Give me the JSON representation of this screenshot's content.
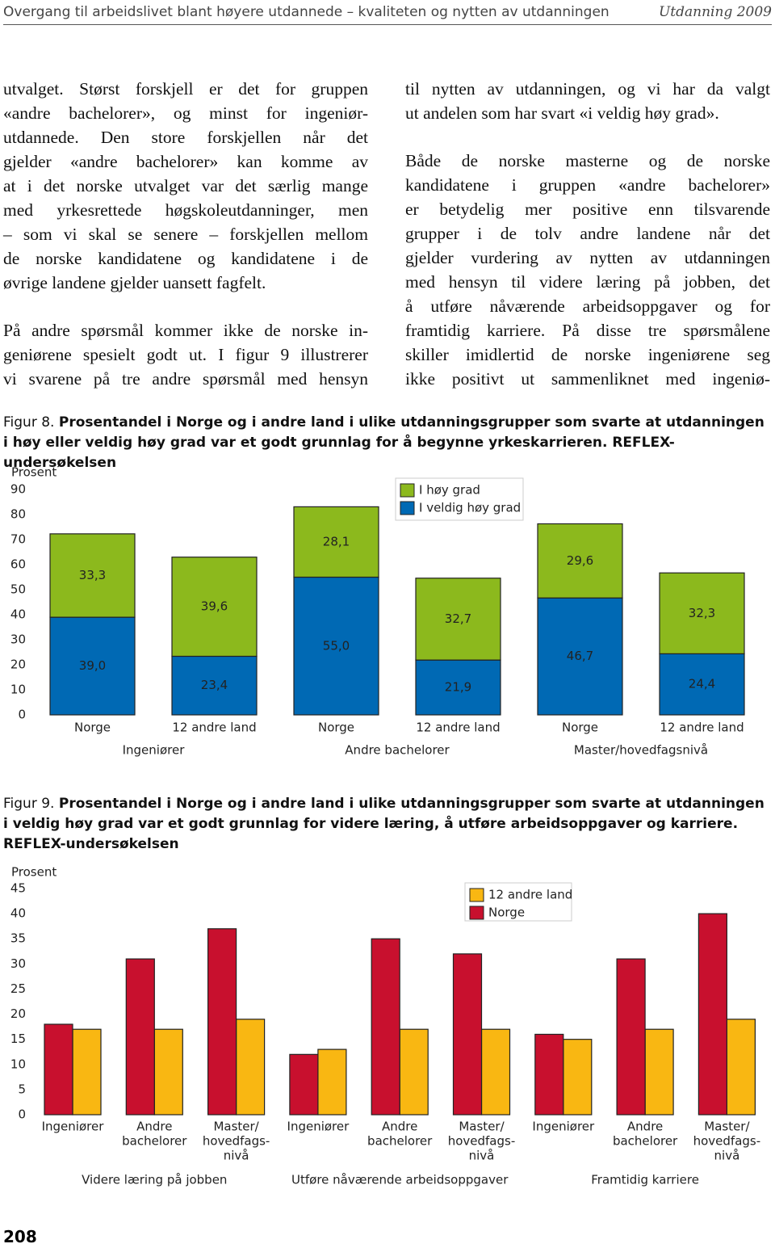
{
  "header": {
    "title": "Overgang til arbeidslivet blant høyere utdannede – kvaliteten og nytten av utdanningen",
    "edition": "Utdanning 2009"
  },
  "columns": [
    [
      [
        "utvalget. Størst forskjell er det for gruppen",
        "«andre bachelorer», og minst for ingeniør-",
        "utdannede. Den store forskjellen når det",
        "gjelder «andre bachelorer» kan komme av",
        "at i det norske utvalget var det særlig mange",
        "med yrkesrettede høgskoleutdanninger, men",
        "– som vi skal se senere – forskjellen mellom",
        "de norske kandidatene og kandidatene i de",
        "øvrige landene gjelder uansett fagfelt."
      ],
      [
        "På andre spørsmål kommer ikke de norske in-",
        "geniørene spesielt godt ut. I figur 9 illustrerer",
        "vi svarene på tre andre spørsmål med hensyn"
      ]
    ],
    [
      [
        "til nytten av utdanningen, og vi har da valgt",
        "ut andelen som har svart «i veldig høy grad»."
      ],
      [
        "Både de norske masterne og de norske",
        "kandidatene i gruppen «andre bachelorer»",
        "er betydelig mer positive enn tilsvarende",
        "grupper i de tolv andre landene når det",
        "gjelder vurdering av nytten av utdanningen",
        "med hensyn til videre læring på jobben, det",
        "å utføre nåværende arbeidsoppgaver og for",
        "framtidig karriere. På disse tre spørsmålene",
        "skiller imidlertid de norske ingeniørene seg",
        "ikke positivt ut sammenliknet med ingeniø-"
      ]
    ]
  ],
  "chart_data": [
    {
      "type": "bar",
      "stacked": true,
      "caption_label": "Figur 8.",
      "caption": "Prosentandel i Norge og i andre land i ulike utdanningsgrupper som svarte at utdanningen i høy eller veldig høy grad var et godt grunnlag for å begynne yrkeskarrieren. REFLEX-undersøkelsen",
      "y_label": "Prosent",
      "categories": [
        "Norge",
        "12 andre land",
        "Norge",
        "12 andre land",
        "Norge",
        "12 andre land"
      ],
      "groups": [
        "Ingeniører",
        "Andre bachelorer",
        "Master/hovedfagsnivå"
      ],
      "series": [
        {
          "name": "I høy grad",
          "color": "#8cb91d",
          "values": [
            33.3,
            39.6,
            28.1,
            32.7,
            29.6,
            32.3
          ],
          "value_labels": [
            "33,3",
            "39,6",
            "28,1",
            "32,7",
            "29,6",
            "32,3"
          ]
        },
        {
          "name": "I veldig høy grad",
          "color": "#0069b4",
          "values": [
            39.0,
            23.4,
            55.0,
            21.9,
            46.7,
            24.4
          ],
          "value_labels": [
            "39,0",
            "23,4",
            "55,0",
            "21,9",
            "46,7",
            "24,4"
          ]
        }
      ],
      "ylim": [
        0,
        90
      ],
      "yticks": [
        0,
        10,
        20,
        30,
        40,
        50,
        60,
        70,
        80,
        90
      ],
      "grid": false,
      "legend": "upper right"
    },
    {
      "type": "bar",
      "stacked": false,
      "caption_label": "Figur 9.",
      "caption": "Prosentandel i Norge og i andre land i ulike utdanningsgrupper som svarte at utdanningen i veldig høy grad var et godt grunnlag for videre læring, å utføre arbeidsoppgaver og karriere. REFLEX-undersøkelsen",
      "y_label": "Prosent",
      "categories": [
        [
          "Ingeniører"
        ],
        [
          "Andre",
          "bachelorer"
        ],
        [
          "Master/",
          "hovedfags-",
          "nivå"
        ],
        [
          "Ingeniører"
        ],
        [
          "Andre",
          "bachelorer"
        ],
        [
          "Master/",
          "hovedfags-",
          "nivå"
        ],
        [
          "Ingeniører"
        ],
        [
          "Andre",
          "bachelorer"
        ],
        [
          "Master/",
          "hovedfags-",
          "nivå"
        ]
      ],
      "groups": [
        "Videre læring på jobben",
        "Utføre nåværende arbeidsoppgaver",
        "Framtidig karriere"
      ],
      "series": [
        {
          "name": "12 andre land",
          "color": "#f9b712",
          "values": [
            17,
            17,
            19,
            13,
            17,
            17,
            15,
            17,
            19
          ]
        },
        {
          "name": "Norge",
          "color": "#c8102e",
          "values": [
            18,
            31,
            37,
            12,
            35,
            32,
            16,
            31,
            40
          ]
        }
      ],
      "ylim": [
        0,
        45
      ],
      "yticks": [
        0,
        5,
        10,
        15,
        20,
        25,
        30,
        35,
        40,
        45
      ],
      "grid": false,
      "legend": "upper right"
    }
  ],
  "page_number": "208"
}
